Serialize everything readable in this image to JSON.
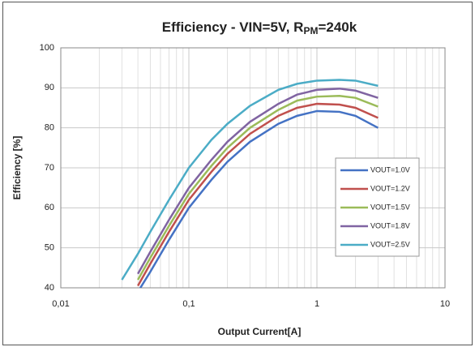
{
  "chart_data": {
    "type": "line",
    "title": [
      "Efficiency - VIN=5V, R",
      "PM",
      "=240k"
    ],
    "xlabel": "Output Current[A]",
    "ylabel": "Efficiency [%]",
    "x": [
      0.03,
      0.04,
      0.05,
      0.07,
      0.1,
      0.15,
      0.2,
      0.3,
      0.5,
      0.7,
      1,
      1.5,
      2,
      3
    ],
    "series": [
      {
        "name": "VOUT=1.0V",
        "color": "#4472c4",
        "values": [
          null,
          39,
          44,
          52,
          60,
          67,
          71.5,
          76.5,
          81,
          83,
          84.2,
          84,
          83,
          80
        ]
      },
      {
        "name": "VOUT=1.2V",
        "color": "#c0504d",
        "values": [
          null,
          40.5,
          46,
          54,
          62,
          69,
          73.5,
          78.5,
          83,
          85,
          86,
          85.8,
          85,
          82.5
        ]
      },
      {
        "name": "VOUT=1.5V",
        "color": "#9bbb59",
        "values": [
          null,
          42,
          47.5,
          55.5,
          63.5,
          70.5,
          75,
          80,
          84.5,
          86.8,
          87.8,
          88,
          87.5,
          85.3
        ]
      },
      {
        "name": "VOUT=1.8V",
        "color": "#8064a2",
        "values": [
          null,
          43.5,
          49,
          57,
          65,
          72,
          76.5,
          81.5,
          86,
          88.3,
          89.5,
          89.8,
          89.3,
          87.5
        ]
      },
      {
        "name": "VOUT=2.5V",
        "color": "#4bacc6",
        "values": [
          42,
          48.5,
          54,
          62,
          70,
          77,
          81,
          85.5,
          89.5,
          91,
          91.8,
          92,
          91.8,
          90.5
        ]
      }
    ],
    "xscale": "log",
    "xlim": [
      0.01,
      10
    ],
    "xticks": [
      {
        "value": 0.01,
        "label": "0,01"
      },
      {
        "value": 0.1,
        "label": "0,1"
      },
      1,
      10
    ],
    "ylim": [
      40,
      100
    ],
    "yticks": [
      40,
      50,
      60,
      70,
      80,
      90,
      100
    ],
    "grid": true,
    "legend": "right"
  }
}
